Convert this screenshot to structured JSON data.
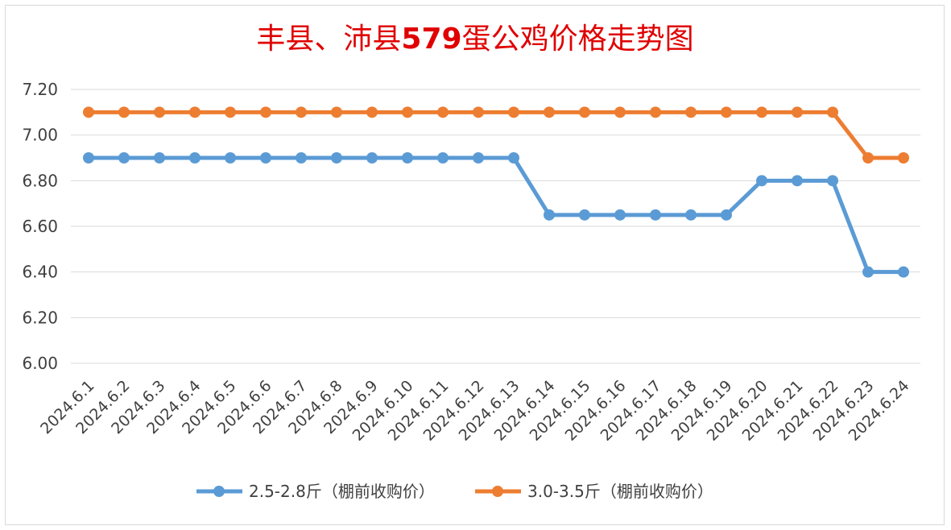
{
  "chart_data": {
    "type": "line",
    "title_parts": [
      {
        "text": "丰县、沛县",
        "bold": false
      },
      {
        "text": "579",
        "bold": true
      },
      {
        "text": "蛋公鸡价格走势图",
        "bold": false
      }
    ],
    "title_color": "#e00000",
    "categories": [
      "2024.6.1",
      "2024.6.2",
      "2024.6.3",
      "2024.6.4",
      "2024.6.5",
      "2024.6.6",
      "2024.6.7",
      "2024.6.8",
      "2024.6.9",
      "2024.6.10",
      "2024.6.11",
      "2024.6.12",
      "2024.6.13",
      "2024.6.14",
      "2024.6.15",
      "2024.6.16",
      "2024.6.17",
      "2024.6.18",
      "2024.6.19",
      "2024.6.20",
      "2024.6.21",
      "2024.6.22",
      "2024.6.23",
      "2024.6.24"
    ],
    "series": [
      {
        "name": "2.5-2.8斤（棚前收购价）",
        "color": "#5b9bd5",
        "values": [
          6.9,
          6.9,
          6.9,
          6.9,
          6.9,
          6.9,
          6.9,
          6.9,
          6.9,
          6.9,
          6.9,
          6.9,
          6.9,
          6.65,
          6.65,
          6.65,
          6.65,
          6.65,
          6.65,
          6.8,
          6.8,
          6.8,
          6.4,
          6.4
        ]
      },
      {
        "name": "3.0-3.5斤（棚前收购价）",
        "color": "#ed7d31",
        "values": [
          7.1,
          7.1,
          7.1,
          7.1,
          7.1,
          7.1,
          7.1,
          7.1,
          7.1,
          7.1,
          7.1,
          7.1,
          7.1,
          7.1,
          7.1,
          7.1,
          7.1,
          7.1,
          7.1,
          7.1,
          7.1,
          7.1,
          6.9,
          6.9
        ]
      }
    ],
    "y_ticks": [
      "6.00",
      "6.20",
      "6.40",
      "6.60",
      "6.80",
      "7.00",
      "7.20"
    ],
    "ylim": [
      6.0,
      7.2
    ],
    "grid": true,
    "legend_position": "bottom"
  }
}
